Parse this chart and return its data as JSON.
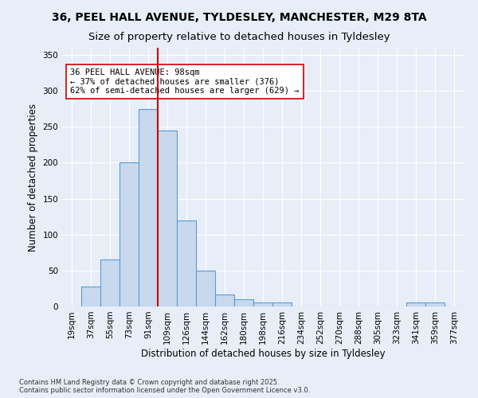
{
  "title_line1": "36, PEEL HALL AVENUE, TYLDESLEY, MANCHESTER, M29 8TA",
  "title_line2": "Size of property relative to detached houses in Tyldesley",
  "xlabel": "Distribution of detached houses by size in Tyldesley",
  "ylabel": "Number of detached properties",
  "categories": [
    "19sqm",
    "37sqm",
    "55sqm",
    "73sqm",
    "91sqm",
    "109sqm",
    "126sqm",
    "144sqm",
    "162sqm",
    "180sqm",
    "198sqm",
    "216sqm",
    "234sqm",
    "252sqm",
    "270sqm",
    "288sqm",
    "305sqm",
    "323sqm",
    "341sqm",
    "359sqm",
    "377sqm"
  ],
  "values": [
    0,
    28,
    65,
    200,
    275,
    245,
    120,
    50,
    17,
    10,
    5,
    5,
    0,
    0,
    0,
    0,
    0,
    0,
    5,
    5,
    0
  ],
  "bar_color": "#c8d9ee",
  "bar_edge_color": "#5b9bd5",
  "bg_color": "#e8eef8",
  "grid_color": "#ffffff",
  "vline_color": "#cc0000",
  "annotation_text": "36 PEEL HALL AVENUE: 98sqm\n← 37% of detached houses are smaller (376)\n62% of semi-detached houses are larger (629) →",
  "annotation_box_color": "#ffffff",
  "annotation_box_edge": "#cc0000",
  "ylim": [
    0,
    360
  ],
  "yticks": [
    0,
    50,
    100,
    150,
    200,
    250,
    300,
    350
  ],
  "footnote": "Contains HM Land Registry data © Crown copyright and database right 2025.\nContains public sector information licensed under the Open Government Licence v3.0.",
  "title_fontsize": 10,
  "subtitle_fontsize": 9.5,
  "tick_fontsize": 7.5,
  "label_fontsize": 8.5,
  "annot_fontsize": 7.5
}
